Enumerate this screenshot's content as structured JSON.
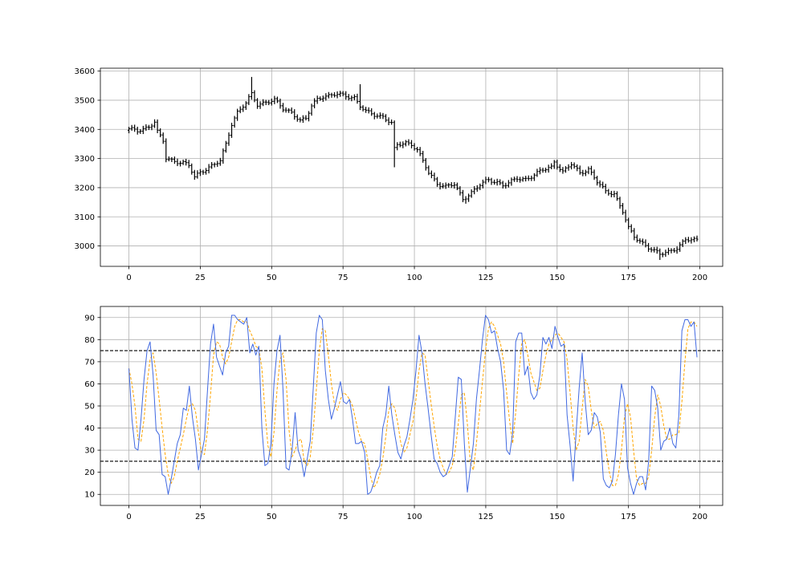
{
  "colors": {
    "background": "#ffffff",
    "frame": "#000000",
    "grid": "#b0b0b0",
    "ohlc": "#000000",
    "oscillator_main": "#4169e1",
    "oscillator_signal": "#ffa500",
    "threshold": "#000000"
  },
  "chart_data": [
    {
      "type": "ohlc",
      "title": "",
      "xlabel": "",
      "ylabel": "",
      "grid": true,
      "xlim": [
        -10,
        208
      ],
      "ylim": [
        2930,
        3610
      ],
      "x_ticks": [
        0,
        25,
        50,
        75,
        100,
        125,
        150,
        175,
        200
      ],
      "y_ticks": [
        3000,
        3100,
        3200,
        3300,
        3400,
        3500,
        3600
      ],
      "close_anchors": {
        "x": [
          0,
          3,
          7,
          9,
          10,
          12,
          13,
          17,
          19,
          21,
          23,
          25,
          28,
          32,
          34,
          36,
          38,
          41,
          43,
          45,
          48,
          51,
          54,
          57,
          60,
          62,
          64,
          66,
          68,
          70,
          73,
          76,
          79,
          81,
          83,
          86,
          89,
          92,
          93,
          94,
          97,
          99,
          101,
          103,
          105,
          108,
          111,
          114,
          117,
          120,
          123,
          126,
          129,
          131,
          133,
          136,
          139,
          142,
          145,
          148,
          149,
          152,
          155,
          158,
          161,
          164,
          167,
          170,
          173,
          175,
          177,
          180,
          183,
          186,
          189,
          192,
          195,
          199
        ],
        "y": [
          3400,
          3395,
          3410,
          3425,
          3390,
          3360,
          3300,
          3290,
          3285,
          3275,
          3235,
          3255,
          3270,
          3290,
          3350,
          3420,
          3460,
          3490,
          3520,
          3485,
          3495,
          3500,
          3470,
          3460,
          3430,
          3435,
          3480,
          3505,
          3515,
          3515,
          3520,
          3515,
          3510,
          3480,
          3460,
          3450,
          3445,
          3420,
          3330,
          3345,
          3355,
          3350,
          3330,
          3290,
          3250,
          3215,
          3205,
          3210,
          3160,
          3185,
          3210,
          3225,
          3220,
          3210,
          3215,
          3230,
          3230,
          3245,
          3260,
          3270,
          3290,
          3255,
          3280,
          3250,
          3265,
          3220,
          3185,
          3180,
          3120,
          3060,
          3030,
          3010,
          2990,
          2970,
          2980,
          2995,
          3020,
          3020
        ]
      },
      "highlights": [
        {
          "x": 43,
          "high": 3580
        },
        {
          "x": 81,
          "high": 3555
        },
        {
          "x": 93,
          "low": 3270
        },
        {
          "x": 118,
          "low": 3145
        },
        {
          "x": 186,
          "low": 2952
        }
      ]
    },
    {
      "type": "line",
      "title": "",
      "xlabel": "",
      "ylabel": "",
      "grid": true,
      "xlim": [
        -10,
        208
      ],
      "ylim": [
        5,
        95
      ],
      "x_ticks": [
        0,
        25,
        50,
        75,
        100,
        125,
        150,
        175,
        200
      ],
      "y_ticks": [
        10,
        20,
        30,
        40,
        50,
        60,
        70,
        80,
        90
      ],
      "hlines": [
        25,
        75
      ],
      "series_x": {
        "start": 0,
        "end": 199
      },
      "series": [
        {
          "name": "",
          "values": [
            67,
            44,
            31,
            30,
            44,
            62,
            75,
            79,
            64,
            39,
            37,
            19,
            18,
            10,
            17,
            25,
            33,
            37,
            49,
            48,
            59,
            45,
            35,
            21,
            28,
            35,
            57,
            78,
            87,
            72,
            68,
            64,
            74,
            77,
            91,
            91,
            89,
            88,
            87,
            90,
            74,
            78,
            73,
            77,
            40,
            23,
            24,
            33,
            60,
            75,
            82,
            57,
            22,
            21,
            30,
            47,
            30,
            26,
            18,
            26,
            34,
            58,
            83,
            91,
            89,
            66,
            53,
            44,
            49,
            55,
            61,
            52,
            51,
            53,
            44,
            33,
            33,
            34,
            29,
            10,
            11,
            15,
            20,
            23,
            40,
            46,
            59,
            46,
            37,
            29,
            26,
            32,
            36,
            44,
            53,
            66,
            82,
            74,
            60,
            49,
            37,
            26,
            24,
            20,
            18,
            19,
            23,
            27,
            45,
            63,
            62,
            33,
            11,
            22,
            33,
            53,
            66,
            80,
            91,
            89,
            83,
            84,
            76,
            70,
            57,
            30,
            28,
            38,
            79,
            83,
            83,
            64,
            68,
            56,
            53,
            55,
            64,
            81,
            78,
            81,
            76,
            86,
            81,
            77,
            78,
            46,
            32,
            16,
            38,
            58,
            74,
            52,
            37,
            39,
            47,
            45,
            38,
            17,
            14,
            13,
            16,
            28,
            46,
            60,
            53,
            22,
            15,
            10,
            15,
            18,
            18,
            12,
            25,
            59,
            57,
            49,
            30,
            34,
            35,
            40,
            33,
            31,
            46,
            84,
            89,
            89,
            86,
            88,
            72
          ]
        },
        {
          "name": "",
          "values": [
            67,
            60,
            50,
            35,
            34,
            44,
            60,
            71,
            74,
            65,
            53,
            40,
            28,
            19,
            15,
            18,
            25,
            31,
            37,
            44,
            50,
            51,
            48,
            38,
            29,
            28,
            39,
            55,
            73,
            79,
            78,
            72,
            69,
            72,
            79,
            86,
            89,
            89,
            88,
            88,
            84,
            81,
            77,
            76,
            67,
            48,
            32,
            27,
            38,
            57,
            71,
            74,
            62,
            39,
            27,
            30,
            34,
            35,
            25,
            23,
            27,
            39,
            57,
            75,
            85,
            84,
            73,
            60,
            51,
            48,
            53,
            56,
            55,
            53,
            50,
            44,
            38,
            34,
            33,
            26,
            18,
            13,
            15,
            19,
            26,
            36,
            48,
            51,
            49,
            42,
            33,
            29,
            31,
            37,
            43,
            53,
            66,
            74,
            73,
            62,
            51,
            41,
            32,
            26,
            22,
            19,
            20,
            23,
            30,
            42,
            55,
            56,
            42,
            24,
            21,
            33,
            47,
            61,
            75,
            85,
            88,
            86,
            82,
            78,
            70,
            56,
            43,
            33,
            47,
            64,
            78,
            80,
            73,
            65,
            61,
            57,
            58,
            66,
            73,
            78,
            80,
            82,
            83,
            81,
            79,
            71,
            56,
            40,
            30,
            34,
            49,
            62,
            59,
            48,
            40,
            42,
            43,
            39,
            29,
            20,
            14,
            14,
            19,
            30,
            45,
            51,
            45,
            30,
            17,
            14,
            15,
            15,
            18,
            30,
            45,
            55,
            50,
            41,
            35,
            35,
            37,
            37,
            38,
            52,
            70,
            85,
            88,
            88,
            86
          ]
        }
      ]
    }
  ]
}
